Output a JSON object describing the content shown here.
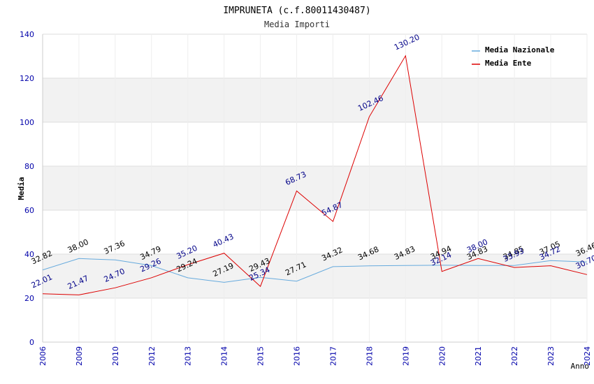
{
  "chart_data": {
    "type": "line",
    "title": "IMPRUNETA (c.f.80011430487)",
    "subtitle": "Media Importi",
    "xlabel": "Anno",
    "ylabel": "Media",
    "ylim": [
      0,
      140
    ],
    "yticks": [
      0,
      20,
      40,
      60,
      80,
      100,
      120,
      140
    ],
    "categories": [
      "2006",
      "2009",
      "2010",
      "2012",
      "2013",
      "2014",
      "2015",
      "2016",
      "2017",
      "2018",
      "2019",
      "2020",
      "2021",
      "2022",
      "2023",
      "2024"
    ],
    "legend_position": "top-right",
    "series": [
      {
        "name": "Media Nazionale",
        "color": "#66aadd",
        "label_color": "#000000",
        "values": [
          32.82,
          38.0,
          37.36,
          34.79,
          29.24,
          27.19,
          29.43,
          27.71,
          34.32,
          34.68,
          34.83,
          34.94,
          34.83,
          34.85,
          37.05,
          36.46
        ],
        "labels": [
          "32.82",
          "38.00",
          "37.36",
          "34.79",
          "29.24",
          "27.19",
          "29.43",
          "27.71",
          "34.32",
          "34.68",
          "34.83",
          "34.94",
          "34.83",
          "34.85",
          "37.05",
          "36.46"
        ]
      },
      {
        "name": "Media Ente",
        "color": "#dd0000",
        "label_color": "#000088",
        "values": [
          22.01,
          21.47,
          24.7,
          29.26,
          35.2,
          40.43,
          25.34,
          68.73,
          54.87,
          102.46,
          130.2,
          32.14,
          38.0,
          33.93,
          34.72,
          30.7
        ],
        "labels": [
          "22.01",
          "21.47",
          "24.70",
          "29.26",
          "35.20",
          "40.43",
          "25.34",
          "68.73",
          "54.87",
          "102.46",
          "130.20",
          "32.14",
          "38.00",
          "33.93",
          "34.72",
          "30.70"
        ]
      }
    ],
    "colors": {
      "band": "#f2f2f2",
      "grid": "#dddddd",
      "axis": "#cccccc",
      "tick_text": "#0000aa"
    }
  }
}
